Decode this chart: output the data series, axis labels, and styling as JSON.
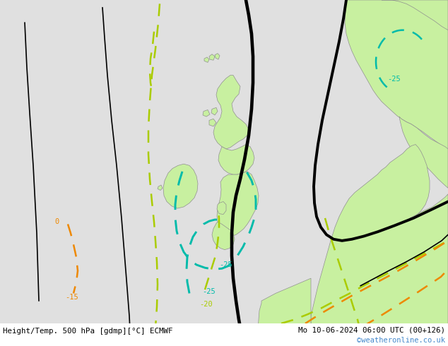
{
  "title_left": "Height/Temp. 500 hPa [gdmp][°C] ECMWF",
  "title_right": "Mo 10-06-2024 06:00 UTC (00+126)",
  "watermark": "©weatheronline.co.uk",
  "bg_color": "#e0e0e0",
  "land_color": "#c8f0a0",
  "coast_color": "#909090",
  "bottom_text_color": "#000000",
  "watermark_color": "#4488cc",
  "cyan_color": "#00bbaa",
  "orange_color": "#ee8800",
  "ygreen_color": "#aacc00",
  "black_thick": 2.8,
  "black_thin": 1.2,
  "dash_lw": 1.8
}
